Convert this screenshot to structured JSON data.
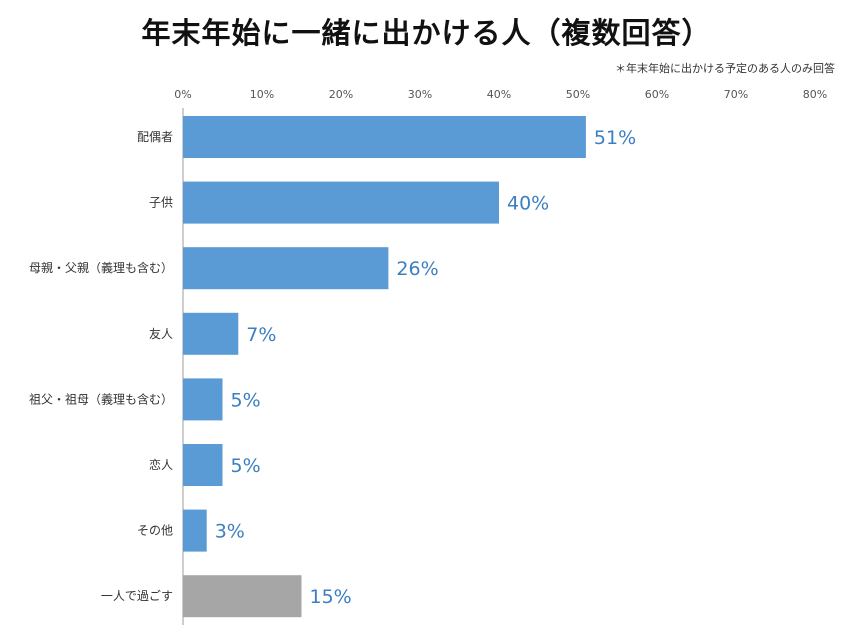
{
  "header": {
    "title": "年末年始に一緒に出かける人（複数回答）",
    "note": "＊年末年始に出かける予定のある人のみ回答"
  },
  "colors": {
    "primary_bar": "#5b9bd5",
    "highlight_bar": "#a6a6a6",
    "data_label": "#3b7fc1",
    "axis": "#9e9e9e"
  },
  "chart_data": {
    "type": "bar",
    "orientation": "horizontal",
    "title": "年末年始に一緒に出かける人（複数回答）",
    "xlim": [
      0,
      80
    ],
    "ticks": [
      0,
      10,
      20,
      30,
      40,
      50,
      60,
      70,
      80
    ],
    "tick_labels": [
      "0%",
      "10%",
      "20%",
      "30%",
      "40%",
      "50%",
      "60%",
      "70%",
      "80%"
    ],
    "categories": [
      "配偶者",
      "子供",
      "母親・父親（義理も含む）",
      "友人",
      "祖父・祖母（義理も含む）",
      "恋人",
      "その他",
      "一人で過ごす"
    ],
    "values": [
      51,
      40,
      26,
      7,
      5,
      5,
      3,
      15
    ],
    "value_labels": [
      "51%",
      "40%",
      "26%",
      "7%",
      "5%",
      "5%",
      "3%",
      "15%"
    ],
    "highlight_categories": [
      "一人で過ごす"
    ],
    "legend": "none",
    "grid": false
  }
}
